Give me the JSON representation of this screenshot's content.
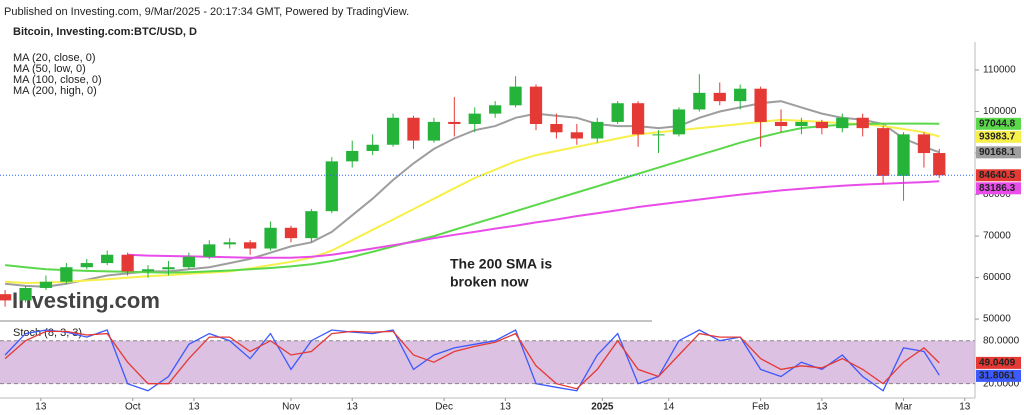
{
  "chart_data": [
    {
      "type": "candlestick",
      "subtitle": "Published on Investing.com, 9/Mar/2025 - 20:17:34 GMT, Powered by TradingView.",
      "title": "Bitcoin, Investing.com:BTC/USD, D",
      "watermark": "Investing.com",
      "annotation": [
        "The 200 SMA is",
        "broken now"
      ],
      "annotation_color": "#e53935",
      "up_color": "#26b33a",
      "down_color": "#e53935",
      "price_line_color": "#2962ff",
      "x": [
        "2024-09-06",
        "2024-09-10",
        "2024-09-14",
        "2024-09-18",
        "2024-09-22",
        "2024-09-26",
        "2024-09-30",
        "2024-10-04",
        "2024-10-08",
        "2024-10-12",
        "2024-10-16",
        "2024-10-20",
        "2024-10-24",
        "2024-10-28",
        "2024-11-01",
        "2024-11-05",
        "2024-11-09",
        "2024-11-13",
        "2024-11-17",
        "2024-11-21",
        "2024-11-25",
        "2024-11-29",
        "2024-12-03",
        "2024-12-07",
        "2024-12-11",
        "2024-12-15",
        "2024-12-19",
        "2024-12-23",
        "2024-12-27",
        "2024-12-31",
        "2025-01-04",
        "2025-01-08",
        "2025-01-12",
        "2025-01-16",
        "2025-01-20",
        "2025-01-24",
        "2025-01-28",
        "2025-02-01",
        "2025-02-05",
        "2025-02-09",
        "2025-02-13",
        "2025-02-17",
        "2025-02-21",
        "2025-02-25",
        "2025-03-01",
        "2025-03-05",
        "2025-03-08"
      ],
      "open": [
        56000,
        54500,
        57500,
        59000,
        62500,
        63500,
        65500,
        61500,
        62000,
        62500,
        65000,
        68000,
        68500,
        67000,
        72000,
        69500,
        76000,
        88000,
        90500,
        92000,
        98500,
        93000,
        97500,
        97000,
        99500,
        101500,
        106000,
        97000,
        95000,
        93500,
        97500,
        102000,
        94500,
        94500,
        100500,
        104500,
        102500,
        105500,
        97500,
        96500,
        97500,
        96000,
        98500,
        96000,
        84500,
        94500,
        90000
      ],
      "high": [
        57000,
        58000,
        60500,
        63500,
        64500,
        66500,
        66000,
        63000,
        64000,
        66000,
        69000,
        69500,
        69000,
        73500,
        72500,
        76500,
        89000,
        93000,
        94500,
        99500,
        99000,
        98500,
        103500,
        101000,
        102500,
        108500,
        106500,
        99500,
        97000,
        98500,
        102500,
        102500,
        95500,
        101000,
        109000,
        107000,
        106500,
        106000,
        100500,
        98500,
        98000,
        99500,
        99500,
        96500,
        95000,
        95000,
        91000
      ],
      "low": [
        53000,
        54000,
        57000,
        58500,
        62000,
        63000,
        60500,
        60000,
        60500,
        62000,
        64500,
        67000,
        65500,
        66500,
        68500,
        68500,
        75500,
        86500,
        89500,
        91500,
        91000,
        92500,
        94000,
        95000,
        98500,
        101000,
        95500,
        93500,
        92000,
        92500,
        97000,
        91500,
        90000,
        94000,
        100000,
        101500,
        100500,
        91500,
        95000,
        94500,
        94500,
        95000,
        94000,
        82500,
        78500,
        86500,
        84000
      ],
      "close": [
        54500,
        57500,
        59000,
        62500,
        63500,
        65500,
        61500,
        62000,
        62500,
        65000,
        68000,
        68500,
        67000,
        72000,
        69500,
        76000,
        88000,
        90500,
        92000,
        98500,
        93000,
        97500,
        97000,
        99500,
        101500,
        106000,
        97000,
        95000,
        93500,
        97500,
        102000,
        94500,
        94500,
        100500,
        104500,
        102500,
        105500,
        97500,
        96500,
        97500,
        96000,
        98500,
        96000,
        84500,
        94500,
        90000,
        84640.5
      ],
      "series": [
        {
          "name": "MA (20, close, 0)",
          "color": "#9e9e9e",
          "values": [
            58500,
            58000,
            57800,
            58500,
            59500,
            60500,
            61000,
            61500,
            61500,
            62000,
            62500,
            63500,
            64500,
            66000,
            67500,
            68500,
            71000,
            75000,
            79000,
            83500,
            87500,
            91000,
            93500,
            95500,
            96500,
            98500,
            99500,
            99000,
            98500,
            97000,
            96500,
            96500,
            96000,
            96500,
            98500,
            100000,
            101000,
            102000,
            102500,
            101000,
            99500,
            98500,
            98000,
            97000,
            93500,
            91500,
            90168.1
          ]
        },
        {
          "name": "MA (50, low, 0)",
          "color": "#f7f04a",
          "values": [
            59000,
            58700,
            58800,
            59000,
            59300,
            59600,
            60000,
            60300,
            60600,
            60900,
            61200,
            61500,
            62200,
            63000,
            63800,
            64800,
            66500,
            69000,
            71500,
            74000,
            76500,
            79000,
            81500,
            84000,
            86000,
            88000,
            89500,
            90500,
            91500,
            92500,
            93500,
            94500,
            95000,
            95500,
            96000,
            96500,
            97000,
            97500,
            98000,
            97800,
            97500,
            97200,
            97000,
            96500,
            95800,
            95000,
            93983.7
          ]
        },
        {
          "name": "MA (100, close, 0)",
          "color": "#5ad84a",
          "values": [
            63000,
            62500,
            62000,
            61800,
            61600,
            61500,
            61400,
            61300,
            61200,
            61300,
            61500,
            61700,
            62000,
            62300,
            62700,
            63200,
            64000,
            65000,
            66200,
            67500,
            68800,
            70000,
            71500,
            73000,
            74500,
            76000,
            77500,
            79000,
            80500,
            82000,
            83500,
            85000,
            86500,
            88000,
            89500,
            91000,
            92500,
            93800,
            95000,
            96000,
            96500,
            96800,
            97000,
            97100,
            97100,
            97100,
            97044.8
          ]
        },
        {
          "name": "MA (200, high, 0)",
          "color": "#e94de9",
          "values": [
            null,
            null,
            null,
            null,
            null,
            null,
            65500,
            65300,
            65200,
            65100,
            65000,
            64900,
            64800,
            64800,
            64800,
            65000,
            65500,
            66200,
            67000,
            67800,
            68600,
            69500,
            70300,
            71000,
            71800,
            72500,
            73300,
            74000,
            74800,
            75500,
            76200,
            77000,
            77600,
            78200,
            78800,
            79400,
            80000,
            80500,
            81000,
            81400,
            81800,
            82100,
            82400,
            82600,
            82800,
            83000,
            83186.3
          ]
        }
      ],
      "xlim": [
        "2024-09-05",
        "2025-03-15"
      ],
      "xticks": [
        {
          "value": "2024-09-13",
          "label": "13"
        },
        {
          "value": "2024-10-01",
          "label": "Oct"
        },
        {
          "value": "2024-10-13",
          "label": "13"
        },
        {
          "value": "2024-11-01",
          "label": "Nov"
        },
        {
          "value": "2024-11-13",
          "label": "13"
        },
        {
          "value": "2024-12-01",
          "label": "Dec"
        },
        {
          "value": "2024-12-13",
          "label": "13"
        },
        {
          "value": "2025-01-01",
          "label": "2025"
        },
        {
          "value": "2025-01-14",
          "label": "14"
        },
        {
          "value": "2025-02-01",
          "label": "Feb"
        },
        {
          "value": "2025-02-13",
          "label": "13"
        },
        {
          "value": "2025-03-01",
          "label": "Mar"
        },
        {
          "value": "2025-03-13",
          "label": "13"
        }
      ],
      "ylim": [
        49300,
        116750
      ],
      "yticks": [
        50000,
        60000,
        70000,
        80000,
        90000,
        100000,
        110000
      ],
      "grid": false
    },
    {
      "type": "line",
      "title": "Stoch (8, 3, 3)",
      "band": [
        20,
        80
      ],
      "band_color": "#dcc1e2",
      "x": [
        "2024-09-06",
        "2024-09-10",
        "2024-09-14",
        "2024-09-18",
        "2024-09-22",
        "2024-09-26",
        "2024-09-30",
        "2024-10-04",
        "2024-10-08",
        "2024-10-12",
        "2024-10-16",
        "2024-10-20",
        "2024-10-24",
        "2024-10-28",
        "2024-11-01",
        "2024-11-05",
        "2024-11-09",
        "2024-11-13",
        "2024-11-17",
        "2024-11-21",
        "2024-11-25",
        "2024-11-29",
        "2024-12-03",
        "2024-12-07",
        "2024-12-11",
        "2024-12-15",
        "2024-12-19",
        "2024-12-23",
        "2024-12-27",
        "2024-12-31",
        "2025-01-04",
        "2025-01-08",
        "2025-01-12",
        "2025-01-16",
        "2025-01-20",
        "2025-01-24",
        "2025-01-28",
        "2025-02-01",
        "2025-02-05",
        "2025-02-09",
        "2025-02-13",
        "2025-02-17",
        "2025-02-21",
        "2025-02-25",
        "2025-03-01",
        "2025-03-05",
        "2025-03-08"
      ],
      "series": [
        {
          "color": "#3d5afe",
          "values": [
            60,
            90,
            95,
            92,
            85,
            95,
            20,
            10,
            30,
            75,
            90,
            80,
            55,
            90,
            40,
            80,
            95,
            92,
            90,
            95,
            40,
            60,
            70,
            75,
            80,
            95,
            20,
            15,
            10,
            60,
            90,
            20,
            30,
            80,
            95,
            80,
            85,
            40,
            30,
            50,
            40,
            60,
            30,
            10,
            70,
            65,
            31.8061
          ]
        },
        {
          "color": "#e53935",
          "values": [
            55,
            80,
            93,
            93,
            88,
            90,
            50,
            20,
            20,
            55,
            85,
            85,
            65,
            80,
            60,
            65,
            90,
            93,
            92,
            93,
            60,
            50,
            65,
            72,
            78,
            90,
            45,
            20,
            13,
            40,
            80,
            40,
            30,
            60,
            90,
            85,
            85,
            55,
            40,
            45,
            42,
            55,
            40,
            20,
            50,
            70,
            49.0409
          ]
        }
      ],
      "ylim": [
        0,
        100
      ],
      "yticks": [
        {
          "value": 80,
          "label": "80.0000"
        },
        {
          "value": 20,
          "label": "20.0000"
        }
      ]
    }
  ]
}
